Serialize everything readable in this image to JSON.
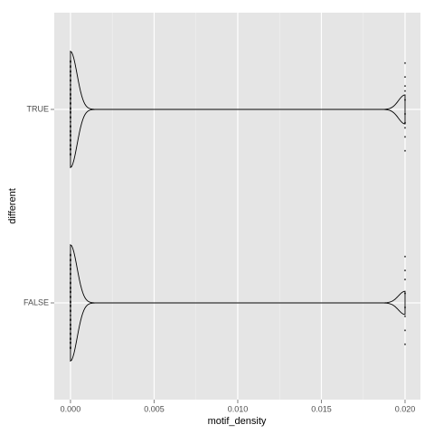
{
  "chart_data": {
    "type": "violin",
    "x_label": "motif_density",
    "y_label": "different",
    "categories": [
      "TRUE",
      "FALSE"
    ],
    "values": [
      [
        0,
        0,
        0,
        0,
        0,
        0,
        0,
        0,
        0,
        0,
        0,
        0,
        0,
        0,
        0,
        0,
        0,
        0,
        0,
        0,
        0,
        0,
        0,
        0,
        0,
        0,
        0,
        0,
        0,
        0,
        0,
        0,
        0,
        0,
        0,
        0,
        0,
        0,
        0,
        0,
        0.02,
        0.02,
        0.02,
        0.02,
        0.02,
        0.02,
        0.02,
        0.02,
        0.02,
        0.02
      ],
      [
        0,
        0,
        0,
        0,
        0,
        0,
        0,
        0,
        0,
        0,
        0,
        0,
        0,
        0,
        0,
        0,
        0,
        0,
        0,
        0,
        0,
        0,
        0,
        0,
        0,
        0,
        0,
        0,
        0,
        0,
        0,
        0,
        0,
        0,
        0,
        0,
        0,
        0,
        0,
        0,
        0.02,
        0.02,
        0.02,
        0.02,
        0.02,
        0.02,
        0.02,
        0.02
      ]
    ],
    "xlim": [
      -0.00097,
      0.02092
    ],
    "xticks": [
      {
        "value": 0,
        "label": "0.000"
      },
      {
        "value": 0.005,
        "label": "0.005"
      },
      {
        "value": 0.01,
        "label": "0.010"
      },
      {
        "value": 0.015,
        "label": "0.015"
      },
      {
        "value": 0.02,
        "label": "0.020"
      }
    ],
    "grid": true,
    "background": "#e5e5e5",
    "color": "#000000"
  }
}
